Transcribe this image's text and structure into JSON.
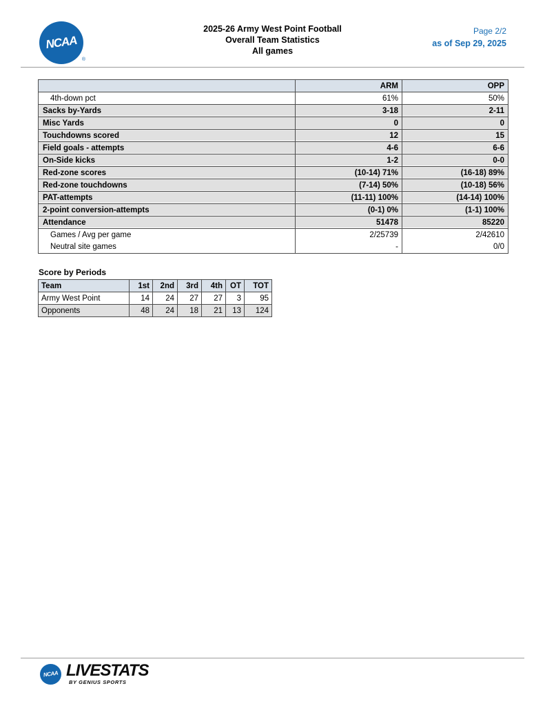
{
  "header": {
    "title_line1": "2025-26 Army West Point Football",
    "title_line2": "Overall Team Statistics",
    "title_line3": "All games",
    "page_number": "Page 2/2",
    "as_of": "as of Sep 29, 2025",
    "ncaa_logo_text": "NCAA",
    "reg_mark": "®"
  },
  "stats_table": {
    "columns": [
      "",
      "ARM",
      "OPP"
    ],
    "rows": [
      {
        "label": "4th-down pct",
        "arm": "61%",
        "opp": "50%",
        "type": "sub"
      },
      {
        "label": "Sacks by-Yards",
        "arm": "3-18",
        "opp": "2-11",
        "type": "category"
      },
      {
        "label": "Misc Yards",
        "arm": "0",
        "opp": "0",
        "type": "category"
      },
      {
        "label": "Touchdowns scored",
        "arm": "12",
        "opp": "15",
        "type": "category"
      },
      {
        "label": "Field goals - attempts",
        "arm": "4-6",
        "opp": "6-6",
        "type": "category"
      },
      {
        "label": "On-Side kicks",
        "arm": "1-2",
        "opp": "0-0",
        "type": "category"
      },
      {
        "label": "Red-zone scores",
        "arm": "(10-14) 71%",
        "opp": "(16-18) 89%",
        "type": "category"
      },
      {
        "label": "Red-zone touchdowns",
        "arm": "(7-14) 50%",
        "opp": "(10-18) 56%",
        "type": "category"
      },
      {
        "label": "PAT-attempts",
        "arm": "(11-11) 100%",
        "opp": "(14-14) 100%",
        "type": "category"
      },
      {
        "label": "2-point conversion-attempts",
        "arm": "(0-1) 0%",
        "opp": "(1-1) 100%",
        "type": "category"
      },
      {
        "label": "Attendance",
        "arm": "51478",
        "opp": "85220",
        "type": "category"
      },
      {
        "label": "Games / Avg per game",
        "arm": "2/25739",
        "opp": "2/42610",
        "type": "sub"
      },
      {
        "label": "Neutral site games",
        "arm": "-",
        "opp": "0/0",
        "type": "sub"
      }
    ]
  },
  "score_by_periods": {
    "title": "Score by Periods",
    "columns": [
      "Team",
      "1st",
      "2nd",
      "3rd",
      "4th",
      "OT",
      "TOT"
    ],
    "rows": [
      {
        "team": "Army West Point",
        "values": [
          "14",
          "24",
          "27",
          "27",
          "3",
          "95"
        ]
      },
      {
        "team": "Opponents",
        "values": [
          "48",
          "24",
          "18",
          "21",
          "13",
          "124"
        ]
      }
    ]
  },
  "footer": {
    "ncaa_logo_text": "NCAA",
    "logo_main": "LIVESTATS",
    "logo_sub": "BY GENIUS SPORTS"
  },
  "colors": {
    "accent_blue": "#1a6fb5",
    "logo_blue": "#1466ae",
    "table_header_bg": "#d9e1ea",
    "row_gray_bg": "#e0e0e0",
    "table_border": "#4c4c4c"
  }
}
